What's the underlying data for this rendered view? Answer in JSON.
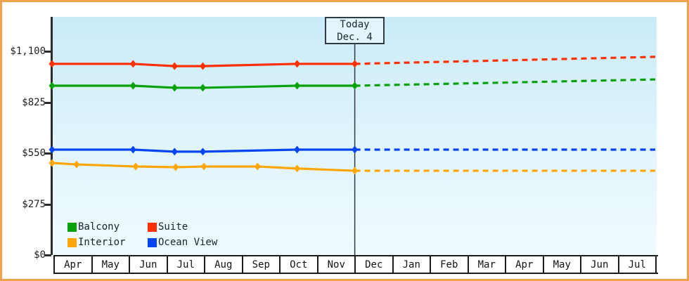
{
  "frame": {
    "border_color": "#eea24c"
  },
  "chart_data": {
    "type": "line",
    "x_labels": [
      "Apr",
      "May",
      "Jun",
      "Jul",
      "Aug",
      "Sep",
      "Oct",
      "Nov",
      "Dec",
      "Jan",
      "Feb",
      "Mar",
      "Apr",
      "May",
      "Jun",
      "Jul"
    ],
    "x_axis": {
      "unit": "months since Apr 1",
      "range": [
        0,
        16
      ]
    },
    "y_axis": {
      "range": [
        0,
        1100
      ],
      "ticks": [
        {
          "label": "$0",
          "value": 0
        },
        {
          "label": "$275",
          "value": 275
        },
        {
          "label": "$550",
          "value": 550
        },
        {
          "label": "$825",
          "value": 825
        },
        {
          "label": "$1,100",
          "value": 1100
        }
      ]
    },
    "today": {
      "line1": "Today",
      "line2": "Dec. 4",
      "m": 8.03
    },
    "legend_position": "bottom-left",
    "grid": false,
    "series": [
      {
        "name": "Balcony",
        "color": "#09a109",
        "points": [
          {
            "date": "Apr 1",
            "m": 0,
            "value": 914
          },
          {
            "date": "Jun 5",
            "m": 2.15,
            "value": 914
          },
          {
            "date": "Jul 8",
            "m": 3.25,
            "value": 903
          },
          {
            "date": "Aug 1",
            "m": 4.0,
            "value": 903
          },
          {
            "date": "Oct 16",
            "m": 6.5,
            "value": 914
          },
          {
            "date": "Dec 4",
            "m": 8.03,
            "value": 914
          }
        ],
        "forecast_end": {
          "m": 16,
          "value": 948
        }
      },
      {
        "name": "Suite",
        "color": "#ff3000",
        "points": [
          {
            "date": "Apr 1",
            "m": 0,
            "value": 1032
          },
          {
            "date": "Jun 5",
            "m": 2.15,
            "value": 1032
          },
          {
            "date": "Jul 8",
            "m": 3.25,
            "value": 1020
          },
          {
            "date": "Aug 1",
            "m": 4.0,
            "value": 1020
          },
          {
            "date": "Oct 16",
            "m": 6.5,
            "value": 1032
          },
          {
            "date": "Dec 4",
            "m": 8.03,
            "value": 1032
          }
        ],
        "forecast_end": {
          "m": 16,
          "value": 1070
        }
      },
      {
        "name": "Interior",
        "color": "#ffa60a",
        "points": [
          {
            "date": "Apr 1",
            "m": 0,
            "value": 497
          },
          {
            "date": "Apr 20",
            "m": 0.65,
            "value": 489
          },
          {
            "date": "Jun 7",
            "m": 2.22,
            "value": 478
          },
          {
            "date": "Jul 9",
            "m": 3.28,
            "value": 474
          },
          {
            "date": "Aug 1",
            "m": 4.03,
            "value": 478
          },
          {
            "date": "Sep 14",
            "m": 5.45,
            "value": 478
          },
          {
            "date": "Oct 16",
            "m": 6.5,
            "value": 467
          },
          {
            "date": "Dec 4",
            "m": 8.03,
            "value": 455
          }
        ],
        "forecast_end": {
          "m": 16,
          "value": 455
        }
      },
      {
        "name": "Ocean View",
        "color": "#0545ef",
        "points": [
          {
            "date": "Apr 1",
            "m": 0,
            "value": 569
          },
          {
            "date": "Jun 5",
            "m": 2.15,
            "value": 569
          },
          {
            "date": "Jul 8",
            "m": 3.25,
            "value": 558
          },
          {
            "date": "Aug 1",
            "m": 4.0,
            "value": 558
          },
          {
            "date": "Oct 16",
            "m": 6.5,
            "value": 569
          },
          {
            "date": "Dec 4",
            "m": 8.03,
            "value": 569
          }
        ],
        "forecast_end": {
          "m": 16,
          "value": 569
        }
      }
    ]
  }
}
